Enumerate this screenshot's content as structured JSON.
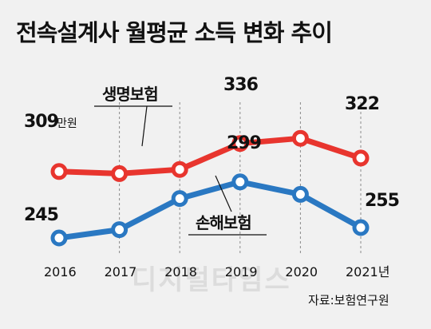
{
  "title": "전속설계사 월평균 소득 변화 추이",
  "source": "자료:보험연구원",
  "watermark": "디지털타임스",
  "colors": {
    "life": "#e8352e",
    "casualty": "#2a78c2",
    "grid": "#8a8a8a",
    "background": "#f1f1f1"
  },
  "chart_data": {
    "type": "line",
    "categories": [
      "2016",
      "2017",
      "2018",
      "2019",
      "2020",
      "2021"
    ],
    "x_tick_labels": [
      "2016",
      "2017",
      "2018",
      "2019",
      "2020",
      "2021년"
    ],
    "series": [
      {
        "name": "생명보험",
        "values": [
          309,
          307,
          311,
          336,
          341,
          322
        ]
      },
      {
        "name": "손해보험",
        "values": [
          245,
          253,
          283,
          299,
          287,
          255
        ]
      }
    ],
    "data_labels": [
      {
        "series": 0,
        "index": 0,
        "text": "309",
        "unit": "만원"
      },
      {
        "series": 0,
        "index": 3,
        "text": "336"
      },
      {
        "series": 0,
        "index": 5,
        "text": "322"
      },
      {
        "series": 1,
        "index": 0,
        "text": "245"
      },
      {
        "series": 1,
        "index": 3,
        "text": "299"
      },
      {
        "series": 1,
        "index": 5,
        "text": "255"
      }
    ],
    "xlabel": "",
    "ylabel": "",
    "grid": "vertical dashed",
    "legend": "inline labels"
  }
}
